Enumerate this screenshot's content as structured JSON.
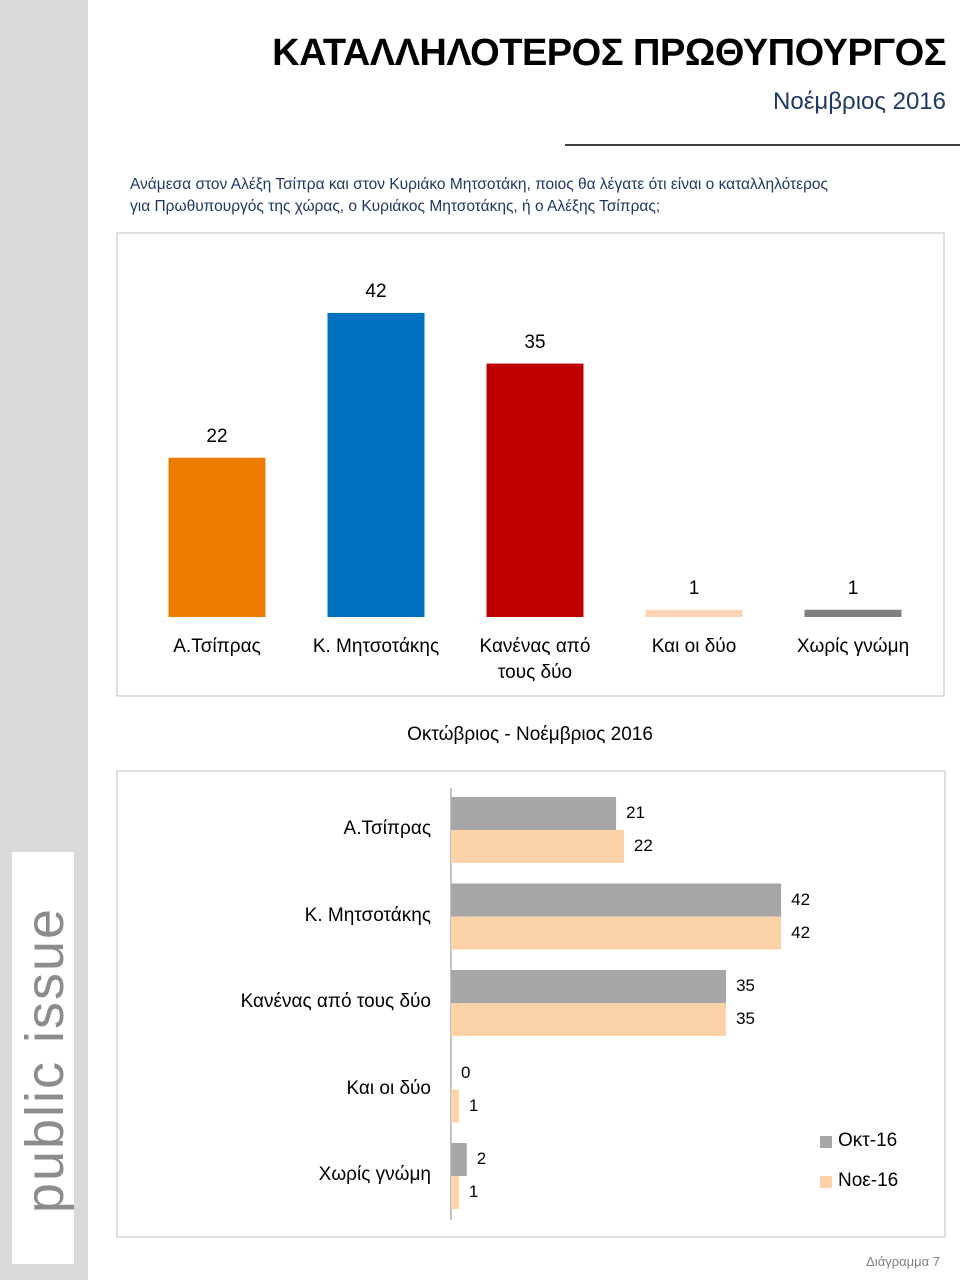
{
  "header": {
    "title": "ΚΑΤΑΛΛΗΛΟΤΕΡΟΣ ΠΡΩΘΥΠΟΥΡΓΟΣ",
    "subtitle": "Νοέμβριος 2016",
    "question": "Ανάμεσα στον Αλέξη Τσίπρα και στον Κυριάκο Μητσοτάκη, ποιος θα λέγατε ότι είναι ο καταλληλότερος για Πρωθυπουργός της χώρας, ο Κυριάκος Μητσοτάκης, ή ο Αλέξης Τσίπρας;",
    "brand": "public issue",
    "footer": "Διάγραμμα 7"
  },
  "chart_data": [
    {
      "type": "bar",
      "categories": [
        "Α.Τσίπρας",
        "Κ. Μητσοτάκης",
        "Κανένας από τους δύο",
        "Και οι δύο",
        "Χωρίς γνώμη"
      ],
      "values": [
        22,
        42,
        35,
        1,
        1
      ],
      "colors": [
        "#ed7d00",
        "#0070c0",
        "#c00000",
        "#fbd5b5",
        "#808080"
      ]
    },
    {
      "type": "hbar",
      "title": "Οκτώβριος - Νοέμβριος 2016",
      "categories": [
        "Α.Τσίπρας",
        "Κ. Μητσοτάκης",
        "Κανένας από τους δύο",
        "Και οι δύο",
        "Χωρίς γνώμη"
      ],
      "series": [
        {
          "name": "Οκτ-16",
          "color": "#a6a6a6",
          "values": [
            21,
            42,
            35,
            0,
            2
          ]
        },
        {
          "name": "Νοε-16",
          "color": "#fcd3a8",
          "values": [
            22,
            42,
            35,
            1,
            1
          ]
        }
      ],
      "legend": "right"
    }
  ]
}
